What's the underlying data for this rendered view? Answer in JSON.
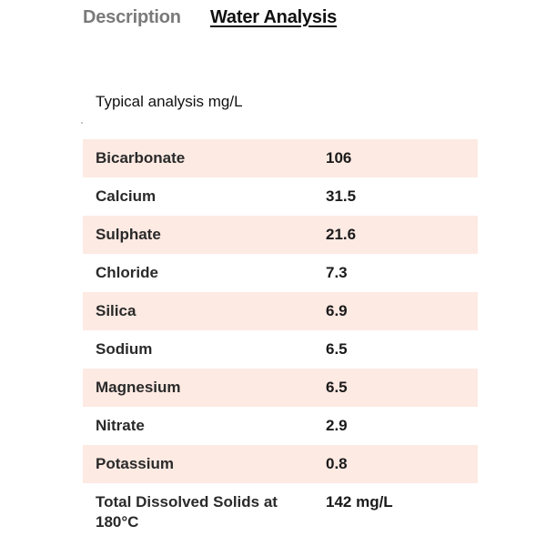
{
  "tabs": {
    "description": "Description",
    "water_analysis": "Water Analysis"
  },
  "caption": "Typical analysis mg/L",
  "colors": {
    "row_shade": "#fdeae3",
    "inactive_tab": "#7a7a7a",
    "active_tab": "#111111"
  },
  "table": {
    "rows": [
      {
        "name": "Bicarbonate",
        "value": "106"
      },
      {
        "name": "Calcium",
        "value": "31.5"
      },
      {
        "name": "Sulphate",
        "value": "21.6"
      },
      {
        "name": "Chloride",
        "value": "7.3"
      },
      {
        "name": "Silica",
        "value": "6.9"
      },
      {
        "name": "Sodium",
        "value": "6.5"
      },
      {
        "name": "Magnesium",
        "value": "6.5"
      },
      {
        "name": "Nitrate",
        "value": "2.9"
      },
      {
        "name": "Potassium",
        "value": "0.8"
      },
      {
        "name": "Total Dissolved Solids at 180°C",
        "value": "142 mg/L"
      }
    ]
  }
}
